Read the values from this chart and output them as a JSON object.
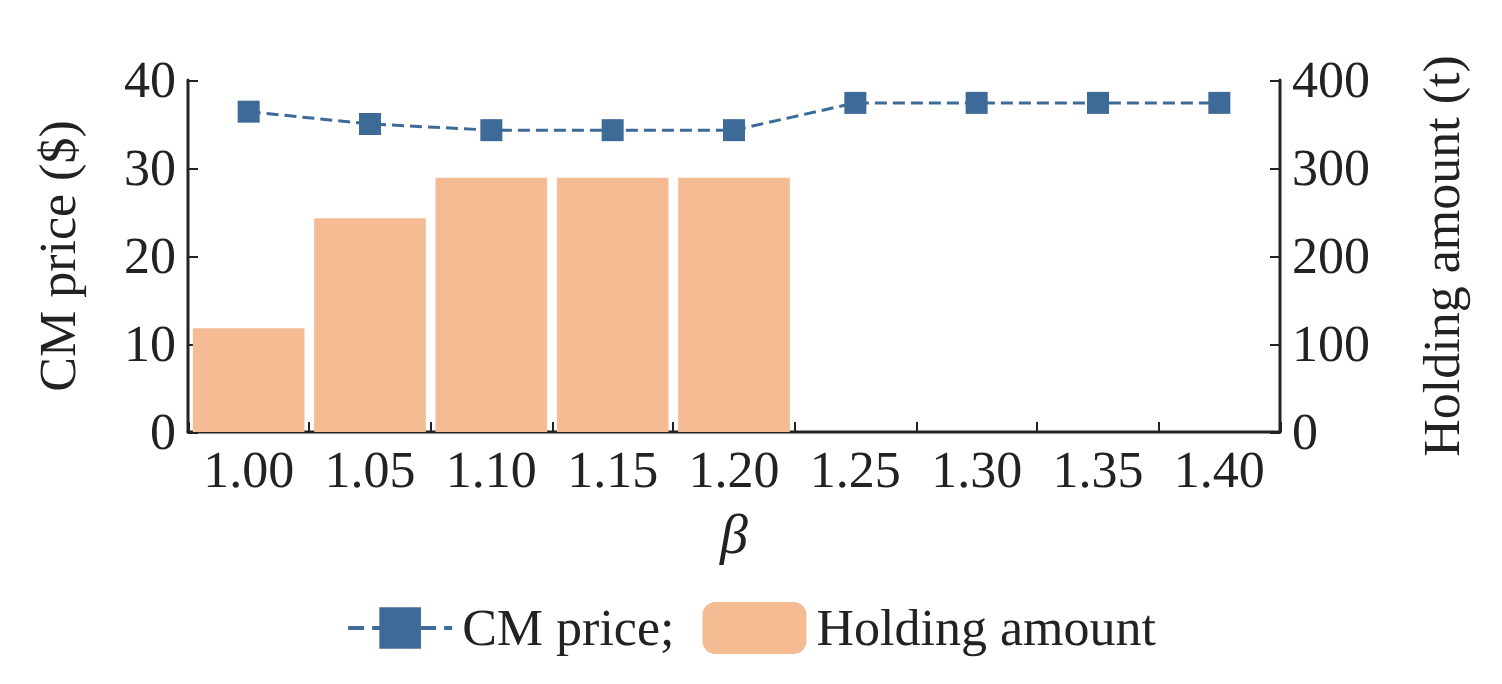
{
  "chart_data": {
    "type": "bar",
    "xlabel": "β",
    "ylabel": "CM price ($)",
    "y2label": "Holding amount (t)",
    "categories": [
      "1.00",
      "1.05",
      "1.10",
      "1.15",
      "1.20",
      "1.25",
      "1.30",
      "1.35",
      "1.40"
    ],
    "series": [
      {
        "name": "CM price;",
        "type": "line",
        "color": "#3d6a96",
        "marker": "square",
        "line_style": "dashed",
        "values": [
          36.4,
          35.0,
          34.3,
          34.3,
          34.3,
          37.4,
          37.4,
          37.4,
          37.4
        ]
      },
      {
        "name": "Holding amount",
        "axis": "y2",
        "color": "#f5bc93",
        "values": [
          118,
          243,
          289,
          289,
          289,
          0,
          0,
          0,
          0
        ]
      }
    ],
    "ylim": [
      0,
      40
    ],
    "yticks": [
      0,
      10,
      20,
      30,
      40
    ],
    "y2lim": [
      0,
      400
    ],
    "y2ticks": [
      0,
      100,
      200,
      300,
      400
    ],
    "grid": false,
    "legend": "bottom"
  }
}
